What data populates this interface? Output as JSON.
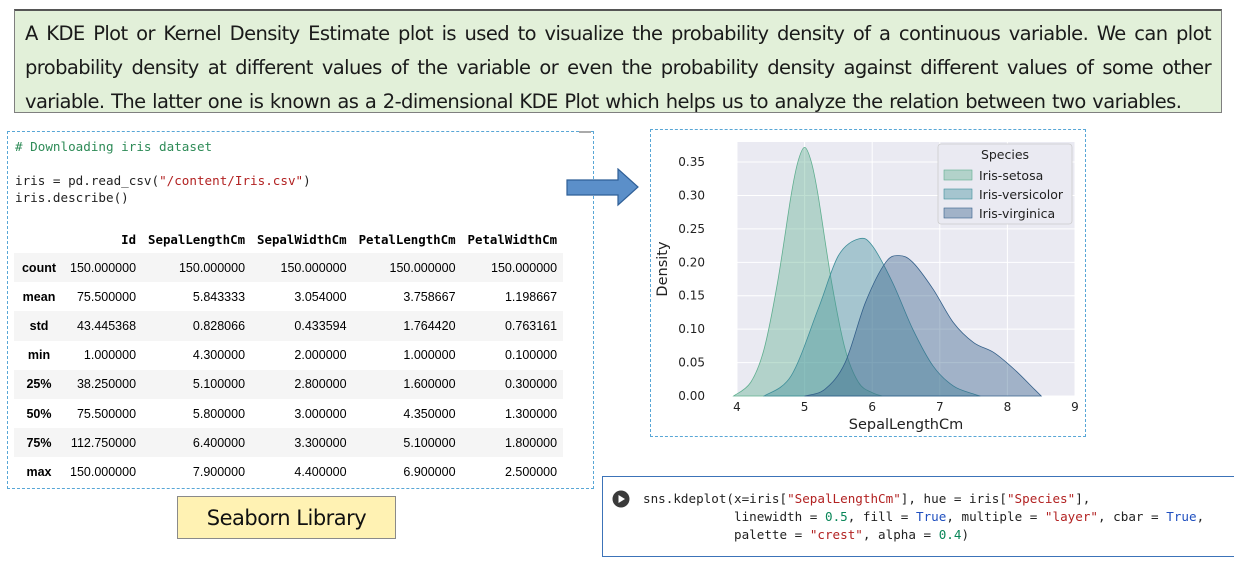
{
  "intro_text": "A KDE Plot or Kernel Density Estimate plot is used to visualize the probability density of a continuous variable. We can plot probability density at different values of the variable or even the probability density against different values of some other variable. The latter one is known as a 2-dimensional KDE Plot which helps us to analyze the relation between two variables.",
  "code_cell": {
    "comment": "# Downloading iris dataset",
    "line2_prefix": "iris = pd.read_csv(",
    "line2_string": "\"/content/Iris.csv\"",
    "line2_suffix": ")",
    "line3": "iris.describe()"
  },
  "describe_table": {
    "columns": [
      "Id",
      "SepalLengthCm",
      "SepalWidthCm",
      "PetalLengthCm",
      "PetalWidthCm"
    ],
    "rows": [
      {
        "label": "count",
        "values": [
          "150.000000",
          "150.000000",
          "150.000000",
          "150.000000",
          "150.000000"
        ]
      },
      {
        "label": "mean",
        "values": [
          "75.500000",
          "5.843333",
          "3.054000",
          "3.758667",
          "1.198667"
        ]
      },
      {
        "label": "std",
        "values": [
          "43.445368",
          "0.828066",
          "0.433594",
          "1.764420",
          "0.763161"
        ]
      },
      {
        "label": "min",
        "values": [
          "1.000000",
          "4.300000",
          "2.000000",
          "1.000000",
          "0.100000"
        ]
      },
      {
        "label": "25%",
        "values": [
          "38.250000",
          "5.100000",
          "2.800000",
          "1.600000",
          "0.300000"
        ]
      },
      {
        "label": "50%",
        "values": [
          "75.500000",
          "5.800000",
          "3.000000",
          "4.350000",
          "1.300000"
        ]
      },
      {
        "label": "75%",
        "values": [
          "112.750000",
          "6.400000",
          "3.300000",
          "5.100000",
          "1.800000"
        ]
      },
      {
        "label": "max",
        "values": [
          "150.000000",
          "7.900000",
          "4.400000",
          "6.900000",
          "2.500000"
        ]
      }
    ]
  },
  "seaborn_label": "Seaborn Library",
  "bottom_code": {
    "line1_a": "sns.kdeplot(x=iris[",
    "line1_s1": "\"SepalLengthCm\"",
    "line1_b": "], hue = iris[",
    "line1_s2": "\"Species\"",
    "line1_c": "],",
    "line2_a": "            linewidth = ",
    "line2_n": "0.5",
    "line2_b": ", fill = ",
    "line2_t1": "True",
    "line2_c": ", multiple = ",
    "line2_s": "\"layer\"",
    "line2_d": ", cbar = ",
    "line2_t2": "True",
    "line2_e": ",",
    "line3_a": "            palette = ",
    "line3_s": "\"crest\"",
    "line3_b": ", alpha = ",
    "line3_n": "0.4",
    "line3_c": ")"
  },
  "colors": {
    "setosa": "#5fae8f",
    "versicolor": "#3f8f9a",
    "virginica": "#34608a",
    "intro_bg": "#e2f0d9",
    "label_bg": "#fff2b3",
    "arrow_fill": "#5b8fc9"
  },
  "chart_data": {
    "type": "area",
    "xlabel": "SepalLengthCm",
    "ylabel": "Density",
    "xlim": [
      4,
      9
    ],
    "ylim": [
      0,
      0.38
    ],
    "xticks": [
      4,
      5,
      6,
      7,
      8,
      9
    ],
    "yticks": [
      0.0,
      0.05,
      0.1,
      0.15,
      0.2,
      0.25,
      0.3,
      0.35
    ],
    "ytick_labels": [
      "0.00",
      "0.05",
      "0.10",
      "0.15",
      "0.20",
      "0.25",
      "0.30",
      "0.35"
    ],
    "grid": true,
    "legend_title": "Species",
    "legend_position": "top-right",
    "series": [
      {
        "name": "Iris-setosa",
        "x": [
          3.95,
          4.2,
          4.4,
          4.6,
          4.8,
          4.9,
          5.0,
          5.1,
          5.2,
          5.4,
          5.6,
          5.8,
          6.0,
          6.15
        ],
        "y": [
          0.0,
          0.02,
          0.07,
          0.17,
          0.3,
          0.35,
          0.372,
          0.35,
          0.3,
          0.17,
          0.07,
          0.02,
          0.005,
          0.0
        ]
      },
      {
        "name": "Iris-versicolor",
        "x": [
          4.4,
          4.8,
          5.2,
          5.5,
          5.8,
          6.0,
          6.3,
          6.6,
          6.9,
          7.2,
          7.5,
          7.6
        ],
        "y": [
          0.0,
          0.03,
          0.13,
          0.21,
          0.235,
          0.225,
          0.17,
          0.1,
          0.045,
          0.015,
          0.003,
          0.0
        ]
      },
      {
        "name": "Iris-virginica",
        "x": [
          5.0,
          5.3,
          5.6,
          5.9,
          6.2,
          6.4,
          6.6,
          6.9,
          7.2,
          7.5,
          7.8,
          8.1,
          8.4,
          8.5
        ],
        "y": [
          0.0,
          0.01,
          0.05,
          0.14,
          0.2,
          0.21,
          0.2,
          0.16,
          0.11,
          0.08,
          0.065,
          0.04,
          0.01,
          0.0
        ]
      }
    ]
  }
}
